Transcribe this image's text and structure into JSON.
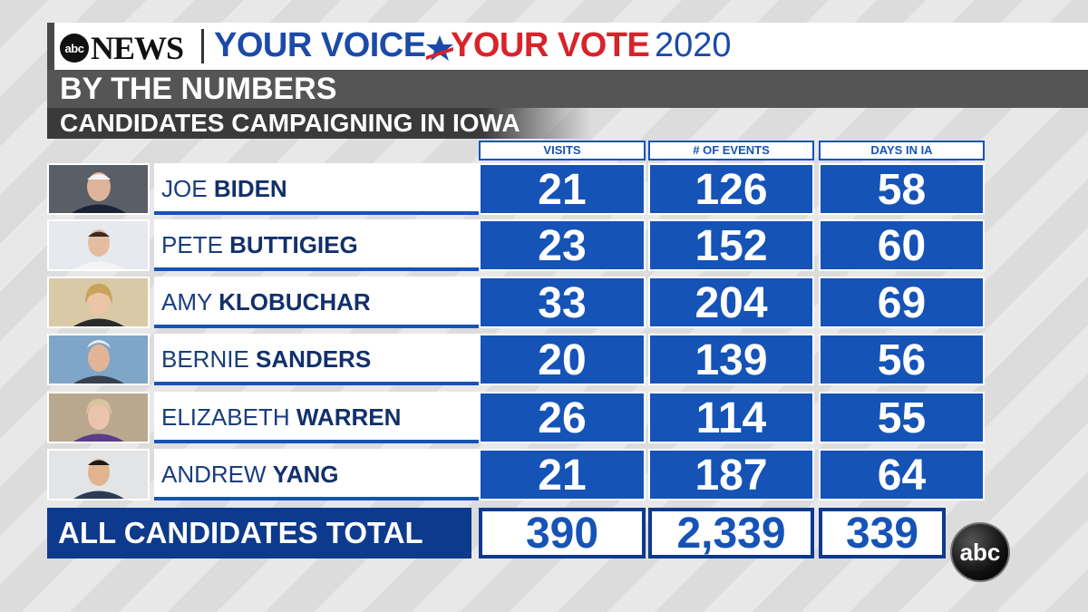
{
  "header": {
    "abc_small": "abc",
    "news": "NEWS",
    "your_voice": "YOUR VOICE",
    "your_vote": "YOUR VOTE",
    "year": "2020"
  },
  "title": "BY THE NUMBERS",
  "subtitle": "CANDIDATES CAMPAIGNING IN IOWA",
  "colors": {
    "accent_blue": "#1553b7",
    "dark_blue": "#0d3a8c",
    "red": "#d8232a"
  },
  "chart_data": {
    "type": "table",
    "title": "BY THE NUMBERS",
    "subtitle": "CANDIDATES CAMPAIGNING IN IOWA",
    "columns": [
      "VISITS",
      "# OF EVENTS",
      "DAYS IN IA"
    ],
    "rows": [
      {
        "first": "JOE",
        "last": "BIDEN",
        "values": [
          "21",
          "126",
          "58"
        ]
      },
      {
        "first": "PETE",
        "last": "BUTTIGIEG",
        "values": [
          "23",
          "152",
          "60"
        ]
      },
      {
        "first": "AMY",
        "last": "KLOBUCHAR",
        "values": [
          "33",
          "204",
          "69"
        ]
      },
      {
        "first": "BERNIE",
        "last": "SANDERS",
        "values": [
          "20",
          "139",
          "56"
        ]
      },
      {
        "first": "ELIZABETH",
        "last": "WARREN",
        "values": [
          "26",
          "114",
          "55"
        ]
      },
      {
        "first": "ANDREW",
        "last": "YANG",
        "values": [
          "21",
          "187",
          "64"
        ]
      }
    ],
    "total": {
      "label": "ALL CANDIDATES TOTAL",
      "values": [
        "390",
        "2,339",
        "339"
      ]
    }
  },
  "bug": "abc"
}
